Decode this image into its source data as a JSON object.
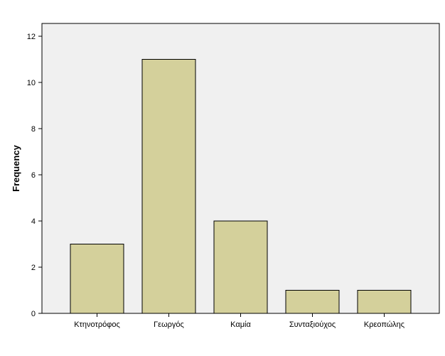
{
  "colors": {
    "bar_fill": "#d4d09b",
    "bar_stroke": "#000000",
    "plot_background": "#f0f0f0",
    "axis": "#000000"
  },
  "chart_data": {
    "type": "bar",
    "categories": [
      "Κτηνοτρόφος",
      "Γεωργός",
      "Καμία",
      "Συνταξιούχος",
      "Κρεοπώλης"
    ],
    "values": [
      3,
      11,
      4,
      1,
      1
    ],
    "title": "",
    "xlabel": "",
    "ylabel": "Frequency",
    "ylim": [
      0,
      12
    ],
    "yticks": [
      0,
      2,
      4,
      6,
      8,
      10,
      12
    ],
    "grid": false,
    "legend": "none"
  }
}
